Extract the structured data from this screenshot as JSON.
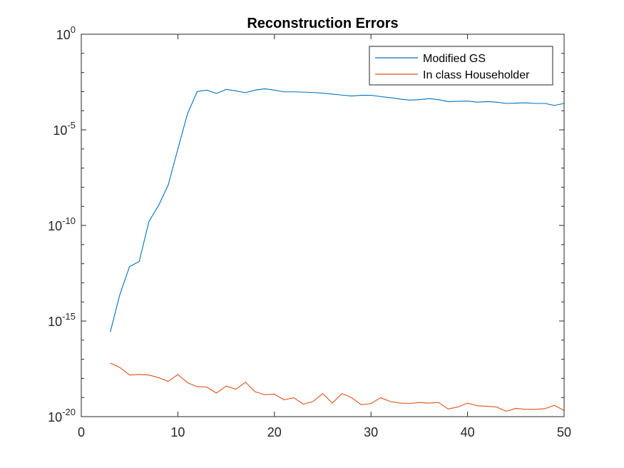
{
  "chart_data": {
    "type": "line",
    "title": "Reconstruction Errors",
    "xlabel": "",
    "ylabel": "",
    "xlim": [
      0,
      50
    ],
    "ylim": [
      1e-20,
      1
    ],
    "yscale": "log",
    "grid": false,
    "legend_position": "top-right",
    "x_ticks": [
      0,
      10,
      20,
      30,
      40,
      50
    ],
    "x_tick_labels": [
      "0",
      "10",
      "20",
      "30",
      "40",
      "50"
    ],
    "y_ticks": [
      1e-20,
      1e-15,
      1e-10,
      1e-05,
      1
    ],
    "y_tick_labels": [
      {
        "base": "10",
        "exp": "-20"
      },
      {
        "base": "10",
        "exp": "-15"
      },
      {
        "base": "10",
        "exp": "-10"
      },
      {
        "base": "10",
        "exp": "-5"
      },
      {
        "base": "10",
        "exp": "0"
      }
    ],
    "x": [
      3,
      4,
      5,
      6,
      7,
      8,
      9,
      10,
      11,
      12,
      13,
      14,
      15,
      16,
      17,
      18,
      19,
      20,
      21,
      22,
      23,
      24,
      25,
      26,
      27,
      28,
      29,
      30,
      31,
      32,
      33,
      34,
      35,
      36,
      37,
      38,
      39,
      40,
      41,
      42,
      43,
      44,
      45,
      46,
      47,
      48,
      49,
      50
    ],
    "series": [
      {
        "name": "Modified GS",
        "color": "#0072BD",
        "values": [
          2.7e-16,
          2.5e-14,
          7.1e-13,
          1.3e-12,
          1.6e-10,
          1.1e-09,
          1.3e-08,
          1e-06,
          7e-05,
          0.001,
          0.0012,
          0.0008,
          0.0013,
          0.0011,
          0.00087,
          0.0012,
          0.0014,
          0.0012,
          0.00097,
          0.00097,
          0.00094,
          0.0009,
          0.00083,
          0.00074,
          0.00066,
          0.00059,
          0.00064,
          0.00064,
          0.00055,
          0.00048,
          0.00041,
          0.00036,
          0.00038,
          0.00043,
          0.00038,
          0.0003,
          0.00031,
          0.00032,
          0.00028,
          0.0003,
          0.00028,
          0.00024,
          0.00025,
          0.00026,
          0.00024,
          0.00024,
          0.00019,
          0.00024
        ]
      },
      {
        "name": "In class Householder",
        "color": "#D95319",
        "values": [
          6.3e-18,
          3.7e-18,
          1.5e-18,
          1.6e-18,
          1.5e-18,
          1.1e-18,
          7e-19,
          1.6e-18,
          5.9e-19,
          3.7e-19,
          3.5e-19,
          1.7e-19,
          4e-19,
          2.7e-19,
          6.3e-19,
          2e-19,
          1.4e-19,
          1.5e-19,
          7.6e-20,
          9.7e-20,
          4.5e-20,
          6.2e-20,
          1.6e-19,
          5.1e-20,
          1.6e-19,
          9.7e-20,
          4.2e-20,
          4.9e-20,
          9.7e-20,
          6.2e-20,
          5.1e-20,
          4.9e-20,
          5.5e-20,
          5.1e-20,
          5.5e-20,
          2.5e-20,
          3.2e-20,
          5.1e-20,
          3.7e-20,
          3.5e-20,
          3.2e-20,
          1.9e-20,
          2.7e-20,
          2.4e-20,
          2.4e-20,
          2.6e-20,
          3.9e-20,
          2.1e-20
        ]
      }
    ]
  }
}
